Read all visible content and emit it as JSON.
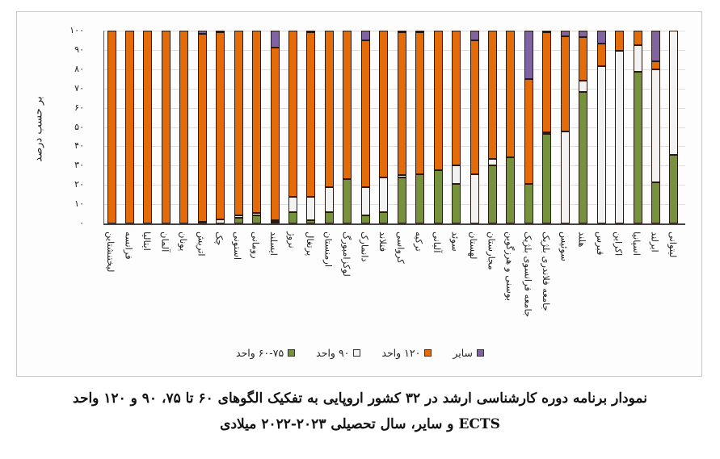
{
  "chart_data": {
    "type": "bar",
    "stacked": true,
    "percent": true,
    "title": "نمودار برنامه دوره کارشناسی ارشد در ۳۲ کشور اروپایی به تفکیک الگوهای ۶۰ تا ۷۵، ۹۰ و ۱۲۰ واحد ECTS و سایر، سال تحصیلی ۲۰۲۳-۲۰۲۲ میلادی",
    "ylabel": "بر حسب درصد",
    "xlabel": "",
    "ylim": [
      0,
      100
    ],
    "yticks": [
      "۰",
      "۱۰",
      "۲۰",
      "۳۰",
      "۴۰",
      "۵۰",
      "۶۰",
      "۷۰",
      "۸۰",
      "۹۰",
      "۱۰۰"
    ],
    "grid": true,
    "legend_position": "bottom",
    "categories": [
      "لیختنشتاین",
      "فرانسه",
      "ایتالیا",
      "آلمان",
      "یونان",
      "اتریش",
      "چک",
      "استونی",
      "رومانی",
      "ایسلند",
      "نروژ",
      "پرتغال",
      "ارمنستان",
      "لوکزامبورگ",
      "دانمارک",
      "فنلاند",
      "کرواسی",
      "ترکیه",
      "آلبانی",
      "سوئد",
      "لهستان",
      "مجارستان",
      "بوسنی و هرزگوین",
      "جامعه فرانسوی بلژیک",
      "جامعه فلاندری بلژیک",
      "سوئیس",
      "هلند",
      "قبرس",
      "اکراین",
      "اسپانیا",
      "ایرلند",
      "لیتوانی"
    ],
    "series": [
      {
        "name": "۶۰-۷۵ واحد",
        "color": "#76923c",
        "values": [
          0,
          0,
          0,
          0,
          0,
          0.5,
          0,
          3,
          4,
          0.5,
          6,
          1.5,
          6,
          23,
          4,
          6,
          24,
          25.5,
          27.5,
          20.5,
          0,
          30,
          34.5,
          20.5,
          46.5,
          0,
          68,
          0,
          0,
          78.5,
          21.5,
          35.5
        ]
      },
      {
        "name": "۹۰ واحد",
        "color": "#f2f2f2",
        "values": [
          0,
          0,
          0,
          0,
          0,
          0,
          2,
          1,
          1.5,
          0.5,
          8,
          12.5,
          13,
          0,
          15,
          18,
          1,
          0,
          0,
          9.5,
          25.5,
          3.5,
          0,
          0,
          1,
          47.5,
          6,
          81.5,
          89.5,
          14,
          58.5,
          64.5
        ]
      },
      {
        "name": "۱۲۰ واحد",
        "color": "#e36c09",
        "values": [
          100,
          100,
          100,
          100,
          100,
          98,
          97,
          96,
          94.5,
          90,
          86,
          85,
          81,
          77,
          76,
          76,
          74.5,
          74,
          72.5,
          70,
          69.5,
          66.5,
          65.5,
          54.5,
          52,
          49.5,
          22.5,
          12,
          10.5,
          7.5,
          4,
          0
        ]
      },
      {
        "name": "سایر",
        "color": "#8064a2",
        "values": [
          0,
          0,
          0,
          0,
          0,
          1.5,
          1,
          0,
          0,
          9,
          0,
          1,
          0,
          0,
          5,
          0,
          0.5,
          0.5,
          0,
          0,
          5,
          0,
          0,
          25,
          0.5,
          3,
          3.5,
          6.5,
          0,
          0,
          16,
          0
        ]
      }
    ]
  },
  "axis": {
    "ylabel": "بر حسب درصد",
    "yticks": [
      "۰",
      "۱۰",
      "۲۰",
      "۳۰",
      "۴۰",
      "۵۰",
      "۶۰",
      "۷۰",
      "۸۰",
      "۹۰",
      "۱۰۰"
    ]
  },
  "legend": [
    {
      "label": "سایر",
      "color": "#8064a2"
    },
    {
      "label": "۱۲۰ واحد",
      "color": "#e36c09"
    },
    {
      "label": "۹۰ واحد",
      "color": "#f2f2f2"
    },
    {
      "label": "۶۰-۷۵ واحد",
      "color": "#76923c"
    }
  ],
  "caption": {
    "line1": "نمودار برنامه دوره کارشناسی ارشد در ۳۲ کشور اروپایی به تفکیک الگوهای ۶۰ تا ۷۵، ۹۰ و ۱۲۰ واحد",
    "line2": "ECTS و سایر، سال تحصیلی ۲۰۲۳-۲۰۲۲ میلادی"
  }
}
